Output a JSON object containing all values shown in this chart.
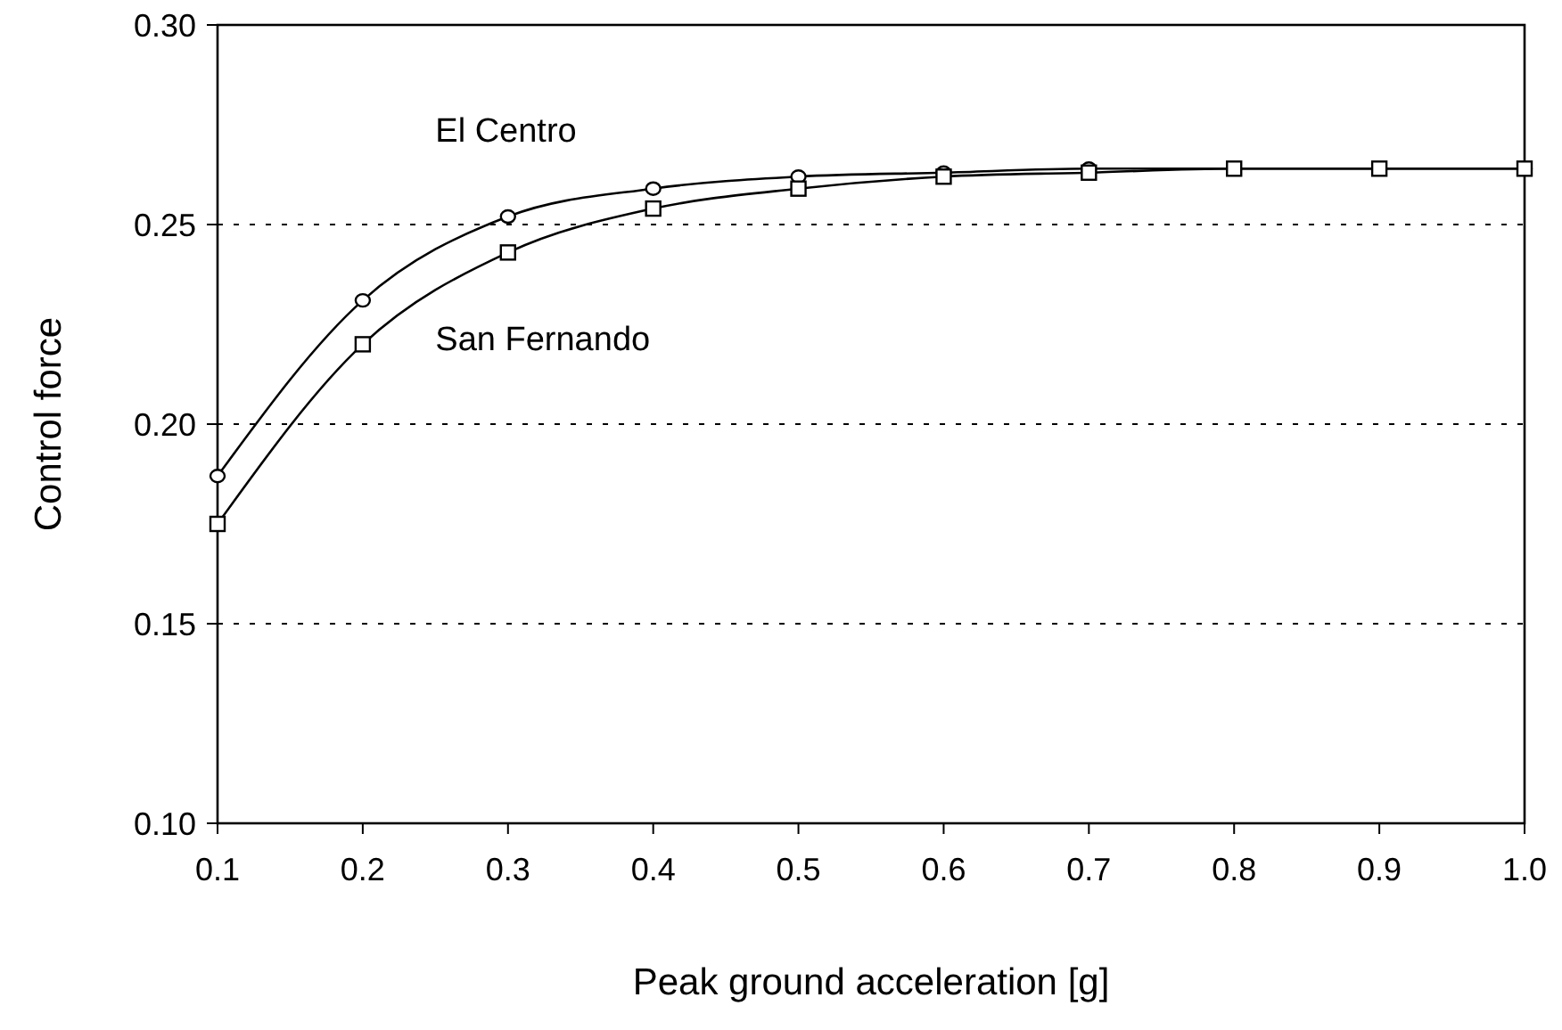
{
  "chart_data": {
    "type": "line",
    "xlabel": "Peak ground acceleration [g]",
    "ylabel": "Control force",
    "x": [
      0.1,
      0.2,
      0.3,
      0.4,
      0.5,
      0.6,
      0.7,
      0.8,
      0.9,
      1.0
    ],
    "series": [
      {
        "name": "El Centro",
        "color": "#000000",
        "marker": "circle",
        "values": [
          0.187,
          0.231,
          0.252,
          0.259,
          0.262,
          0.263,
          0.264,
          0.264,
          0.264,
          0.264
        ]
      },
      {
        "name": "San Fernando",
        "color": "#000000",
        "marker": "square",
        "values": [
          0.175,
          0.22,
          0.243,
          0.254,
          0.259,
          0.262,
          0.263,
          0.264,
          0.264,
          0.264
        ]
      }
    ],
    "xlim": [
      0.1,
      1.0
    ],
    "xticks": [
      {
        "value": 0.1,
        "label": "0.1"
      },
      {
        "value": 0.2,
        "label": "0.2"
      },
      {
        "value": 0.3,
        "label": "0.3"
      },
      {
        "value": 0.4,
        "label": "0.4"
      },
      {
        "value": 0.5,
        "label": "0.5"
      },
      {
        "value": 0.6,
        "label": "0.6"
      },
      {
        "value": 0.7,
        "label": "0.7"
      },
      {
        "value": 0.8,
        "label": "0.8"
      },
      {
        "value": 0.9,
        "label": "0.9"
      },
      {
        "value": 1.0,
        "label": "1.0"
      }
    ],
    "ylim": [
      0.1,
      0.3
    ],
    "yticks": [
      {
        "value": 0.1,
        "label": "0.10"
      },
      {
        "value": 0.15,
        "label": "0.15"
      },
      {
        "value": 0.2,
        "label": "0.20"
      },
      {
        "value": 0.25,
        "label": "0.25"
      },
      {
        "value": 0.3,
        "label": "0.30"
      }
    ],
    "grid": "y",
    "line_style": "solid"
  }
}
